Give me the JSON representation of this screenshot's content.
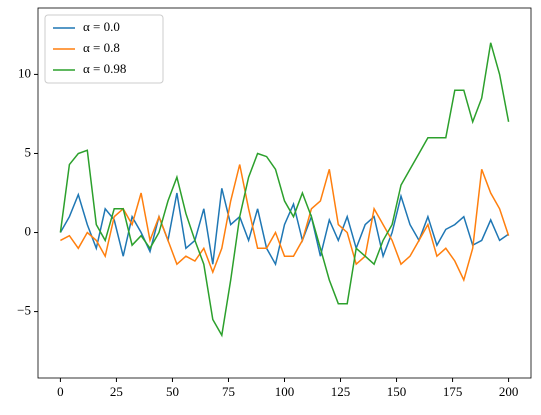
{
  "chart_data": {
    "type": "line",
    "x": [
      0,
      4,
      8,
      12,
      16,
      20,
      24,
      28,
      32,
      36,
      40,
      44,
      48,
      52,
      56,
      60,
      64,
      68,
      72,
      76,
      80,
      84,
      88,
      92,
      96,
      100,
      104,
      108,
      112,
      116,
      120,
      124,
      128,
      132,
      136,
      140,
      144,
      148,
      152,
      156,
      160,
      164,
      168,
      172,
      176,
      180,
      184,
      188,
      192,
      196,
      200
    ],
    "series": [
      {
        "name": "α = 0.0",
        "color": "#1f77b4",
        "values": [
          0,
          1,
          2.4,
          0.5,
          -1,
          1.5,
          0.8,
          -1.5,
          1,
          0,
          -1.2,
          1,
          -0.5,
          2.5,
          -1,
          -0.5,
          1.5,
          -2,
          2.8,
          0.5,
          1,
          -0.5,
          1.5,
          -1,
          -2,
          0.5,
          1.8,
          -0.5,
          1,
          -1.5,
          0.8,
          -0.5,
          1,
          -1,
          0.5,
          1,
          -1.5,
          0,
          2.3,
          0.5,
          -0.5,
          1,
          -0.8,
          0.2,
          0.5,
          1,
          -0.8,
          -0.5,
          0.8,
          -0.5,
          -0.1
        ]
      },
      {
        "name": "α = 0.8",
        "color": "#ff7f0e",
        "values": [
          -0.5,
          -0.2,
          -1,
          0,
          -0.5,
          -1.5,
          1,
          1.5,
          0.5,
          2.5,
          -0.5,
          1,
          -0.5,
          -2,
          -1.5,
          -1.8,
          -1,
          -2.5,
          -1,
          2,
          4.3,
          1.5,
          -1,
          -1,
          0,
          -1.5,
          -1.5,
          -0.5,
          1.5,
          2,
          4,
          0.5,
          0,
          -2,
          -1.5,
          1.5,
          0.5,
          -0.5,
          -2,
          -1.5,
          -0.5,
          0.5,
          -1.5,
          -1,
          -1.8,
          -3,
          -1,
          4,
          2.5,
          1.5,
          -0.2
        ]
      },
      {
        "name": "α = 0.98",
        "color": "#2ca02c",
        "values": [
          0,
          4.3,
          5,
          5.2,
          0.5,
          -0.5,
          1.5,
          1.5,
          -0.8,
          -0.2,
          -1,
          0,
          2,
          3.5,
          1.2,
          -0.5,
          -2,
          -5.5,
          -6.5,
          -3,
          1,
          3.5,
          5,
          4.8,
          4,
          2,
          1,
          2.5,
          1,
          -1,
          -3,
          -4.5,
          -4.5,
          -1,
          -1.5,
          -2,
          -0.5,
          0.5,
          3,
          4,
          5,
          6,
          6,
          6,
          9,
          9,
          7,
          8.5,
          12,
          10,
          7
        ]
      }
    ],
    "xlim": [
      -10,
      210
    ],
    "ylim": [
      -9.2,
      14.2
    ],
    "xticks": [
      0,
      25,
      50,
      75,
      100,
      125,
      150,
      175,
      200
    ],
    "yticks": [
      {
        "value": -5,
        "label": "−5"
      },
      0,
      5,
      10
    ],
    "legend": "upper left"
  }
}
